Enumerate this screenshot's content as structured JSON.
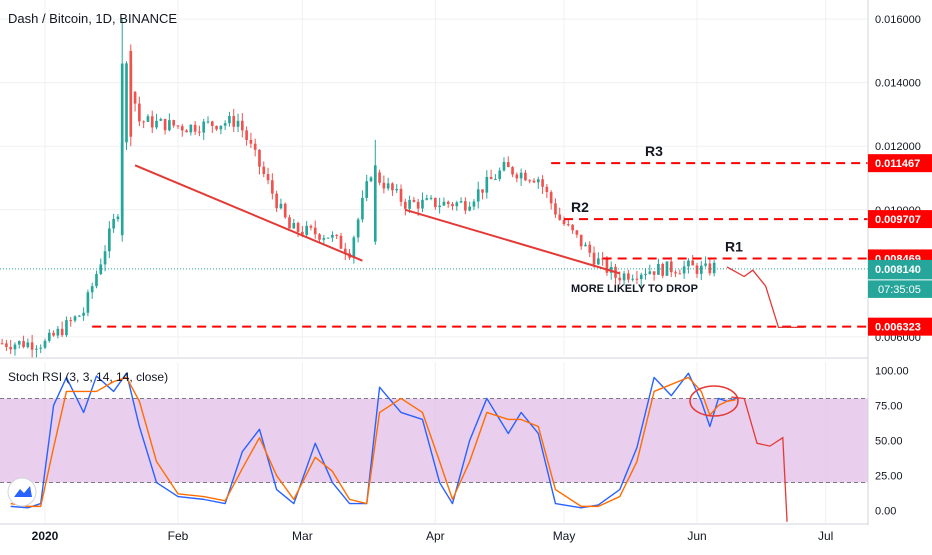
{
  "header": {
    "title": "Dash / Bitcoin, 1D, BINANCE"
  },
  "chart_data": [
    {
      "type": "candlestick",
      "title": "Dash / Bitcoin, 1D, BINANCE",
      "price_axis": {
        "ylim": [
          0.0054,
          0.0166
        ],
        "ticks": [
          0.014,
          0.012,
          0.01,
          0.008,
          0.006
        ]
      },
      "ticks": [
        {
          "value": 0.016,
          "label": "0.016000"
        },
        {
          "value": 0.014,
          "label": "0.014000"
        },
        {
          "value": 0.012,
          "label": "0.012000"
        },
        {
          "value": 0.01,
          "label": "0.010000"
        },
        {
          "value": 0.006,
          "label": "0.006000"
        }
      ],
      "time_axis": {
        "labels": [
          {
            "text": "2020",
            "date": "2020-01-01"
          },
          {
            "text": "Feb",
            "date": "2020-02-01"
          },
          {
            "text": "Mar",
            "date": "2020-03-01"
          },
          {
            "text": "Apr",
            "date": "2020-04-01"
          },
          {
            "text": "May",
            "date": "2020-05-01"
          },
          {
            "text": "Jun",
            "date": "2020-06-01"
          },
          {
            "text": "Jul",
            "date": "2020-07-01"
          }
        ]
      },
      "current_price": {
        "value": 0.00814,
        "label": "0.008140",
        "countdown": "07:35:05",
        "color": "#26a69a"
      },
      "candle_colors": {
        "up": "#26a69a",
        "down": "#ef5350"
      },
      "key_closes": [
        {
          "date": "2019-12-22",
          "close": 0.0058
        },
        {
          "date": "2020-01-01",
          "close": 0.0058
        },
        {
          "date": "2020-01-10",
          "close": 0.0068
        },
        {
          "date": "2020-01-18",
          "close": 0.01
        },
        {
          "date": "2020-01-20",
          "close": 0.0145
        },
        {
          "date": "2020-01-23",
          "close": 0.0128
        },
        {
          "date": "2020-02-03",
          "close": 0.0126
        },
        {
          "date": "2020-02-15",
          "close": 0.0128
        },
        {
          "date": "2020-02-27",
          "close": 0.0094
        },
        {
          "date": "2020-03-07",
          "close": 0.0092
        },
        {
          "date": "2020-03-12",
          "close": 0.0087
        },
        {
          "date": "2020-03-17",
          "close": 0.0112
        },
        {
          "date": "2020-03-25",
          "close": 0.0102
        },
        {
          "date": "2020-04-08",
          "close": 0.0102
        },
        {
          "date": "2020-04-17",
          "close": 0.0113
        },
        {
          "date": "2020-04-25",
          "close": 0.011
        },
        {
          "date": "2020-04-30",
          "close": 0.0097
        },
        {
          "date": "2020-05-08",
          "close": 0.0085
        },
        {
          "date": "2020-05-13",
          "close": 0.0079
        },
        {
          "date": "2020-05-20",
          "close": 0.0081
        },
        {
          "date": "2020-05-30",
          "close": 0.0082
        },
        {
          "date": "2020-06-03",
          "close": 0.0081
        },
        {
          "date": "2020-06-05",
          "close": 0.0082
        }
      ],
      "levels": [
        {
          "name": "R3",
          "value": 0.011467,
          "label": "0.011467",
          "start": "2020-04-28",
          "color": "#ff0000"
        },
        {
          "name": "R2",
          "value": 0.009707,
          "label": "0.009707",
          "start": "2020-05-01",
          "color": "#ff0000"
        },
        {
          "name": "R1",
          "value": 0.008469,
          "label": "0.008469",
          "start": "2020-05-10",
          "color": "#ff0000"
        },
        {
          "name": "",
          "value": 0.006323,
          "label": "0.006323",
          "start": "2020-01-12",
          "color": "#ff0000"
        }
      ],
      "trendlines": [
        {
          "from": {
            "date": "2020-01-22",
            "price": 0.0114
          },
          "to": {
            "date": "2020-03-15",
            "price": 0.0084
          }
        },
        {
          "from": {
            "date": "2020-03-25",
            "price": 0.01
          },
          "to": {
            "date": "2020-05-14",
            "price": 0.008
          }
        }
      ],
      "projection_path": [
        {
          "date": "2020-06-08",
          "price": 0.0082
        },
        {
          "date": "2020-06-12",
          "price": 0.0079
        },
        {
          "date": "2020-06-14",
          "price": 0.0081
        },
        {
          "date": "2020-06-17",
          "price": 0.0076
        },
        {
          "date": "2020-06-20",
          "price": 0.0063
        },
        {
          "date": "2020-06-26",
          "price": 0.0063
        }
      ],
      "annotations": [
        {
          "text": "MORE LIKELY TO DROP"
        }
      ]
    },
    {
      "type": "line",
      "title": "Stoch RSI (3, 3, 14, 14, close)",
      "ylim": [
        -6,
        106
      ],
      "ticks": [
        {
          "value": 100,
          "label": "100.00"
        },
        {
          "value": 75,
          "label": "75.00"
        },
        {
          "value": 50,
          "label": "50.00"
        },
        {
          "value": 25,
          "label": "25.00"
        },
        {
          "value": 0,
          "label": "0.00"
        }
      ],
      "band": {
        "upper": 80,
        "lower": 20,
        "fill": "#e1bee7"
      },
      "series": [
        {
          "color": "#2962ff",
          "points": [
            [
              "2019-12-24",
              3
            ],
            [
              "2019-12-28",
              2
            ],
            [
              "2019-12-31",
              5
            ],
            [
              "2020-01-03",
              75
            ],
            [
              "2020-01-06",
              95
            ],
            [
              "2020-01-10",
              70
            ],
            [
              "2020-01-13",
              96
            ],
            [
              "2020-01-17",
              85
            ],
            [
              "2020-01-20",
              98
            ],
            [
              "2020-01-23",
              60
            ],
            [
              "2020-01-27",
              20
            ],
            [
              "2020-02-01",
              10
            ],
            [
              "2020-02-07",
              8
            ],
            [
              "2020-02-12",
              5
            ],
            [
              "2020-02-16",
              42
            ],
            [
              "2020-02-20",
              58
            ],
            [
              "2020-02-24",
              15
            ],
            [
              "2020-02-28",
              5
            ],
            [
              "2020-03-04",
              48
            ],
            [
              "2020-03-08",
              20
            ],
            [
              "2020-03-12",
              5
            ],
            [
              "2020-03-16",
              5
            ],
            [
              "2020-03-19",
              88
            ],
            [
              "2020-03-24",
              70
            ],
            [
              "2020-03-29",
              65
            ],
            [
              "2020-04-02",
              20
            ],
            [
              "2020-04-05",
              5
            ],
            [
              "2020-04-09",
              50
            ],
            [
              "2020-04-13",
              80
            ],
            [
              "2020-04-18",
              55
            ],
            [
              "2020-04-21",
              70
            ],
            [
              "2020-04-25",
              55
            ],
            [
              "2020-04-29",
              5
            ],
            [
              "2020-05-05",
              2
            ],
            [
              "2020-05-09",
              4
            ],
            [
              "2020-05-14",
              15
            ],
            [
              "2020-05-18",
              45
            ],
            [
              "2020-05-22",
              95
            ],
            [
              "2020-05-26",
              82
            ],
            [
              "2020-05-30",
              98
            ],
            [
              "2020-06-02",
              78
            ],
            [
              "2020-06-04",
              60
            ],
            [
              "2020-06-06",
              80
            ],
            [
              "2020-06-08",
              78
            ],
            [
              "2020-06-10",
              80
            ]
          ]
        },
        {
          "color": "#ff6d00",
          "points": [
            [
              "2019-12-24",
              5
            ],
            [
              "2019-12-28",
              3
            ],
            [
              "2019-12-31",
              3
            ],
            [
              "2020-01-03",
              45
            ],
            [
              "2020-01-06",
              85
            ],
            [
              "2020-01-10",
              85
            ],
            [
              "2020-01-13",
              85
            ],
            [
              "2020-01-17",
              92
            ],
            [
              "2020-01-20",
              95
            ],
            [
              "2020-01-23",
              78
            ],
            [
              "2020-01-27",
              35
            ],
            [
              "2020-02-01",
              12
            ],
            [
              "2020-02-07",
              10
            ],
            [
              "2020-02-12",
              7
            ],
            [
              "2020-02-16",
              30
            ],
            [
              "2020-02-20",
              52
            ],
            [
              "2020-02-24",
              25
            ],
            [
              "2020-02-28",
              8
            ],
            [
              "2020-03-04",
              38
            ],
            [
              "2020-03-08",
              28
            ],
            [
              "2020-03-12",
              8
            ],
            [
              "2020-03-16",
              5
            ],
            [
              "2020-03-19",
              70
            ],
            [
              "2020-03-24",
              80
            ],
            [
              "2020-03-29",
              70
            ],
            [
              "2020-04-02",
              35
            ],
            [
              "2020-04-05",
              8
            ],
            [
              "2020-04-09",
              35
            ],
            [
              "2020-04-13",
              70
            ],
            [
              "2020-04-18",
              65
            ],
            [
              "2020-04-21",
              65
            ],
            [
              "2020-04-25",
              60
            ],
            [
              "2020-04-29",
              15
            ],
            [
              "2020-05-05",
              3
            ],
            [
              "2020-05-09",
              3
            ],
            [
              "2020-05-14",
              10
            ],
            [
              "2020-05-18",
              35
            ],
            [
              "2020-05-22",
              85
            ],
            [
              "2020-05-26",
              90
            ],
            [
              "2020-05-30",
              95
            ],
            [
              "2020-06-02",
              85
            ],
            [
              "2020-06-04",
              68
            ],
            [
              "2020-06-06",
              75
            ],
            [
              "2020-06-08",
              78
            ],
            [
              "2020-06-10",
              79
            ]
          ]
        }
      ],
      "projection_path": [
        [
          "2020-06-09",
          81
        ],
        [
          "2020-06-12",
          80
        ],
        [
          "2020-06-15",
          48
        ],
        [
          "2020-06-18",
          46
        ],
        [
          "2020-06-21",
          52
        ],
        [
          "2020-06-22",
          -8
        ]
      ]
    }
  ],
  "watermark_icon": "cloud-logo-icon"
}
